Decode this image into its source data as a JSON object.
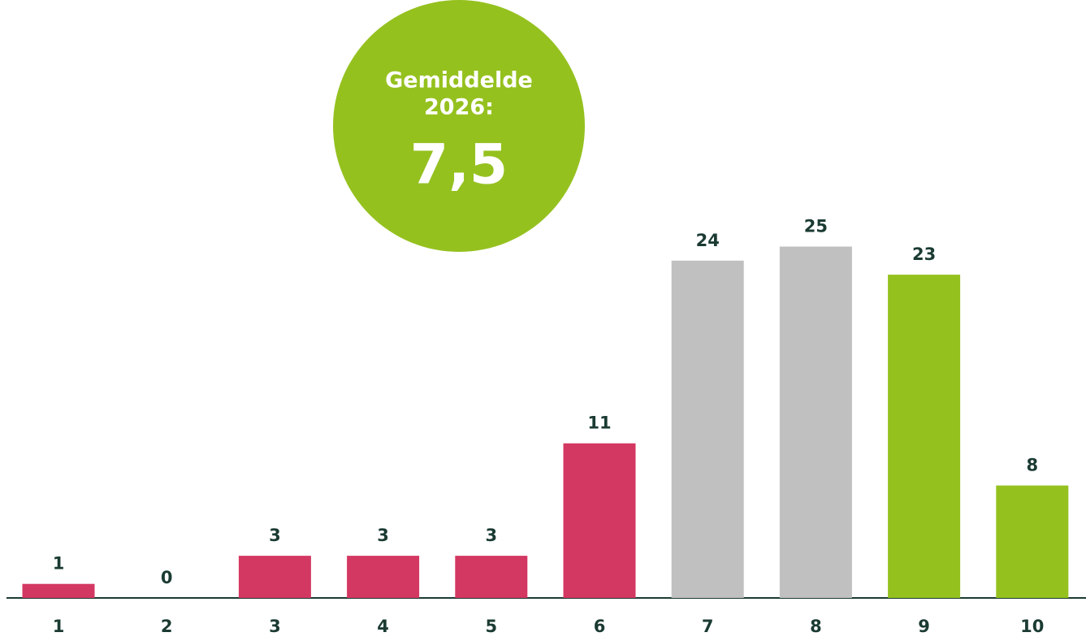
{
  "chart_data": {
    "type": "bar",
    "categories": [
      "1",
      "2",
      "3",
      "4",
      "5",
      "6",
      "7",
      "8",
      "9",
      "10"
    ],
    "values": [
      1,
      0,
      3,
      3,
      3,
      11,
      24,
      25,
      23,
      8
    ],
    "colors": [
      "#d33862",
      "#d33862",
      "#d33862",
      "#d33862",
      "#d33862",
      "#d33862",
      "#c0c0c0",
      "#c0c0c0",
      "#95c11f",
      "#95c11f"
    ],
    "annotation": {
      "lines": [
        "Gemiddelde",
        "2026:"
      ],
      "value": "7,5",
      "color": "#95c11f"
    }
  }
}
